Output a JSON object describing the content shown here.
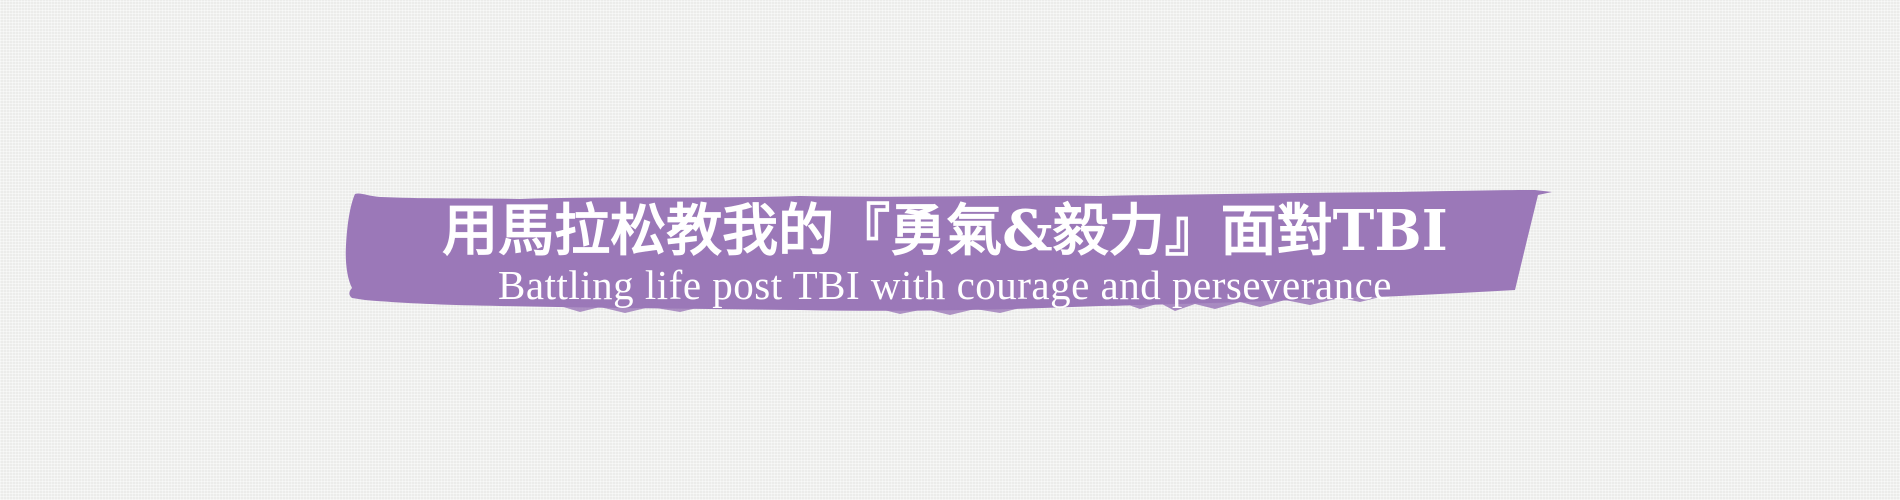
{
  "banner": {
    "title_zh": "用馬拉松教我的『勇氣&毅力』面對TBI",
    "subtitle_en": "Battling life post TBI with courage and perseverance"
  },
  "colors": {
    "background": "#f1f2f0",
    "brush": "#9b78b8",
    "text": "#ffffff"
  }
}
